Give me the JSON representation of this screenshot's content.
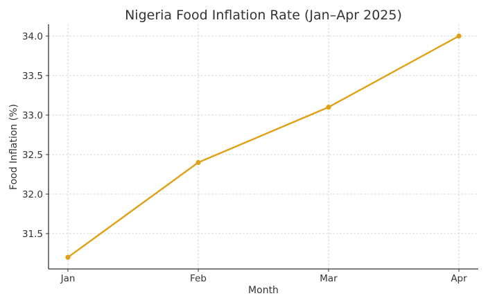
{
  "chart_data": {
    "type": "line",
    "title": "Nigeria Food Inflation Rate (Jan–Apr 2025)",
    "xlabel": "Month",
    "ylabel": "Food Inflation (%)",
    "categories": [
      "Jan",
      "Feb",
      "Mar",
      "Apr"
    ],
    "series": [
      {
        "name": "Food Inflation",
        "values": [
          31.2,
          32.4,
          33.1,
          34.0
        ],
        "color": "#E0A016",
        "marker": "circle"
      }
    ],
    "yticks": [
      31.5,
      32.0,
      32.5,
      33.0,
      33.5,
      34.0
    ],
    "ytick_labels": [
      "31.5",
      "32.0",
      "32.5",
      "33.0",
      "33.5",
      "34.0"
    ],
    "ylim": [
      31.06,
      34.14
    ],
    "grid": true,
    "legend": false
  }
}
